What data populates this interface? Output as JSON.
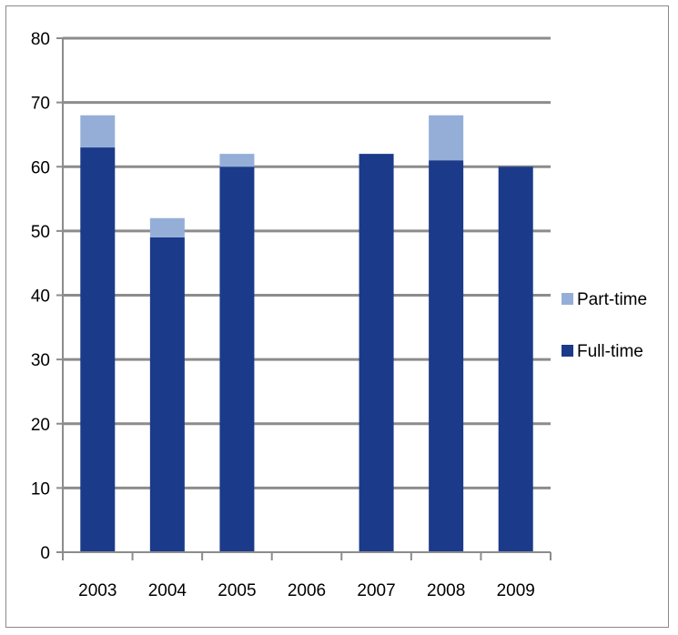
{
  "chart_data": {
    "type": "bar",
    "stacked": true,
    "categories": [
      "2003",
      "2004",
      "2005",
      "2006",
      "2007",
      "2008",
      "2009"
    ],
    "series": [
      {
        "name": "Full-time",
        "values": [
          63,
          49,
          60,
          0,
          62,
          61,
          60
        ],
        "color": "#1b3a8a"
      },
      {
        "name": "Part-time",
        "values": [
          5,
          3,
          2,
          0,
          0,
          7,
          0
        ],
        "color": "#95aed8"
      }
    ],
    "yticks": [
      "0",
      "10",
      "20",
      "30",
      "40",
      "50",
      "60",
      "70",
      "80"
    ],
    "ylim": [
      0,
      80
    ],
    "grid": true,
    "legend": "right"
  }
}
